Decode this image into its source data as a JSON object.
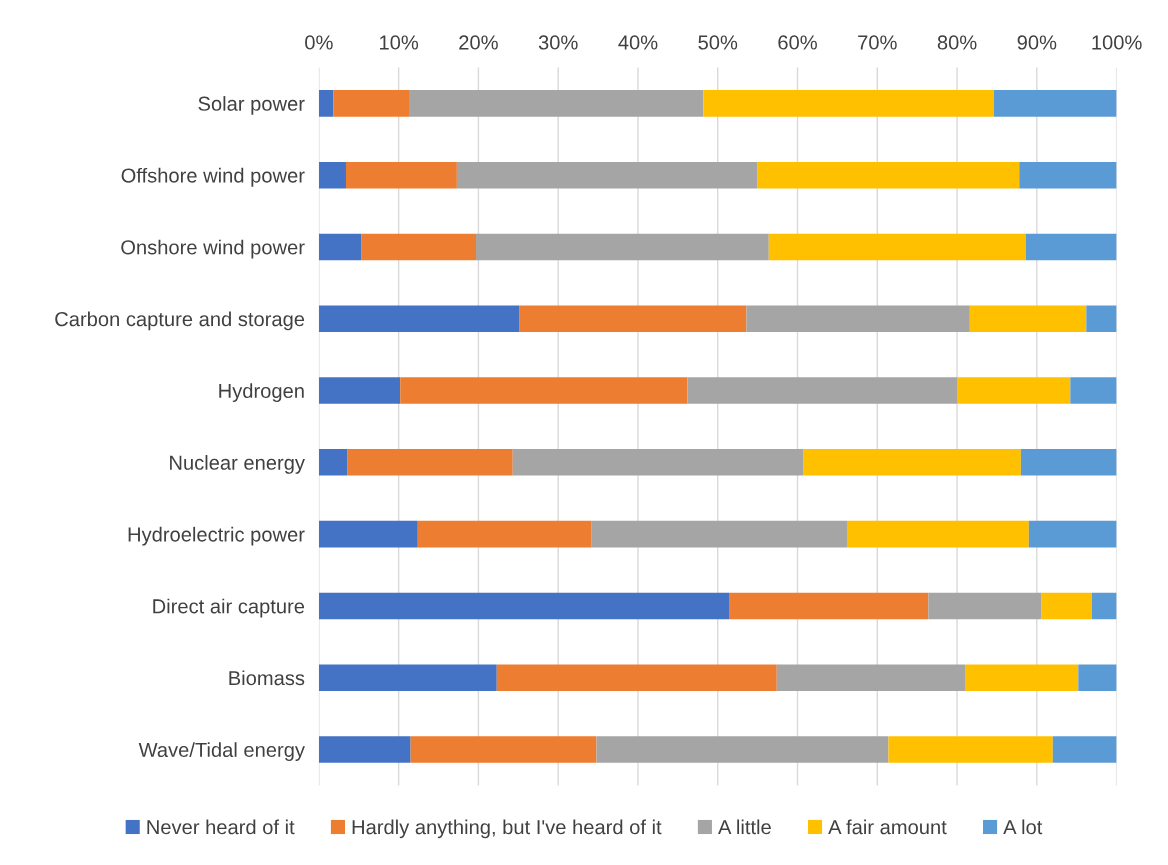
{
  "chart_data": {
    "type": "bar",
    "orientation": "horizontal",
    "stacked": true,
    "categories": [
      "Solar power",
      "Offshore wind power",
      "Onshore wind power",
      "Carbon capture and storage",
      "Hydrogen",
      "Nuclear energy",
      "Hydroelectric power",
      "Direct air capture",
      "Biomass",
      "Wave/Tidal energy"
    ],
    "series": [
      {
        "name": "Never heard of it",
        "color": "#4472c4",
        "values": [
          1.8,
          3.4,
          5.3,
          25.1,
          10.2,
          3.6,
          12.4,
          51.5,
          22.3,
          11.5
        ]
      },
      {
        "name": "Hardly anything, but I've heard of it",
        "color": "#ed7d31",
        "values": [
          9.5,
          13.9,
          14.4,
          28.5,
          36.0,
          20.7,
          21.8,
          24.9,
          35.1,
          23.3
        ]
      },
      {
        "name": "A little",
        "color": "#a5a5a5",
        "values": [
          36.9,
          37.7,
          36.7,
          28.0,
          33.8,
          36.4,
          32.0,
          14.2,
          23.6,
          36.6
        ]
      },
      {
        "name": "A fair amount",
        "color": "#ffc000",
        "values": [
          36.4,
          32.8,
          32.2,
          14.6,
          14.2,
          27.3,
          22.8,
          6.3,
          14.2,
          20.6
        ]
      },
      {
        "name": "A lot",
        "color": "#5b9bd5",
        "values": [
          15.4,
          12.2,
          11.4,
          3.8,
          5.8,
          12.0,
          11.0,
          3.1,
          4.8,
          8.0
        ]
      }
    ],
    "xlim": [
      0,
      100
    ],
    "xticks": [
      {
        "value": 0,
        "label": "0%"
      },
      {
        "value": 10,
        "label": "10%"
      },
      {
        "value": 20,
        "label": "20%"
      },
      {
        "value": 30,
        "label": "30%"
      },
      {
        "value": 40,
        "label": "40%"
      },
      {
        "value": 50,
        "label": "50%"
      },
      {
        "value": 60,
        "label": "60%"
      },
      {
        "value": 70,
        "label": "70%"
      },
      {
        "value": 80,
        "label": "80%"
      },
      {
        "value": 90,
        "label": "90%"
      },
      {
        "value": 100,
        "label": "100%"
      }
    ],
    "grid": "x",
    "legend": "bottom"
  }
}
